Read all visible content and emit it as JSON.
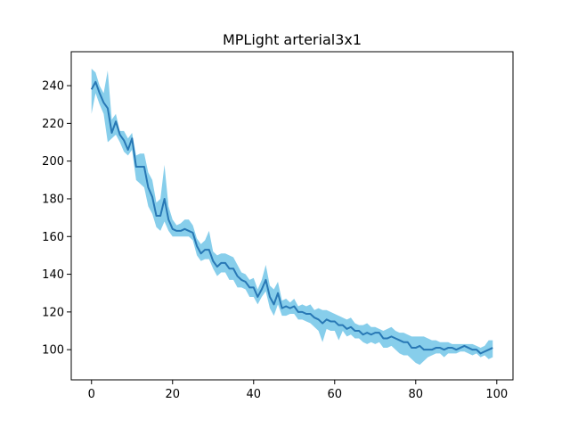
{
  "chart_data": {
    "type": "line",
    "title": "MPLight arterial3x1",
    "xlabel": "",
    "ylabel": "",
    "xlim": [
      -5,
      104
    ],
    "ylim": [
      84,
      258
    ],
    "xticks": [
      0,
      20,
      40,
      60,
      80,
      100
    ],
    "yticks": [
      100,
      120,
      140,
      160,
      180,
      200,
      220,
      240
    ],
    "grid": false,
    "legend": "none",
    "colors": {
      "line": "#2878b5",
      "band": "#87ceeb"
    },
    "series": [
      {
        "x": [
          0,
          1,
          2,
          3,
          4,
          5,
          6,
          7,
          8,
          9,
          10,
          11,
          12,
          13,
          14,
          15,
          16,
          17,
          18,
          19,
          20,
          21,
          22,
          23,
          24,
          25,
          26,
          27,
          28,
          29,
          30,
          31,
          32,
          33,
          34,
          35,
          36,
          37,
          38,
          39,
          40,
          41,
          42,
          43,
          44,
          45,
          46,
          47,
          48,
          49,
          50,
          51,
          52,
          53,
          54,
          55,
          56,
          57,
          58,
          59,
          60,
          61,
          62,
          63,
          64,
          65,
          66,
          67,
          68,
          69,
          70,
          71,
          72,
          73,
          74,
          75,
          76,
          77,
          78,
          79,
          80,
          81,
          82,
          83,
          84,
          85,
          86,
          87,
          88,
          89,
          90,
          91,
          92,
          93,
          94,
          95,
          96,
          97,
          98,
          99
        ],
        "values": [
          238,
          242,
          236,
          231,
          228,
          215,
          221,
          214,
          211,
          206,
          212,
          197,
          197,
          197,
          186,
          181,
          171,
          171,
          180,
          169,
          164,
          163,
          163,
          164,
          163,
          162,
          155,
          151,
          153,
          153,
          147,
          144,
          146,
          146,
          143,
          143,
          139,
          137,
          136,
          133,
          133,
          128,
          132,
          137,
          128,
          124,
          130,
          122,
          123,
          122,
          123,
          120,
          120,
          119,
          119,
          117,
          116,
          114,
          116,
          115,
          115,
          113,
          113,
          111,
          112,
          110,
          110,
          108,
          109,
          108,
          109,
          109,
          106,
          106,
          107,
          106,
          105,
          104,
          104,
          101,
          101,
          102,
          100,
          100,
          100,
          101,
          101,
          100,
          101,
          101,
          100,
          101,
          102,
          101,
          100,
          100,
          98,
          99,
          100,
          101
        ],
        "lower": [
          225,
          236,
          230,
          225,
          210,
          212,
          214,
          210,
          205,
          203,
          206,
          190,
          188,
          186,
          176,
          172,
          165,
          163,
          168,
          163,
          160,
          160,
          160,
          160,
          160,
          158,
          150,
          147,
          148,
          148,
          143,
          139,
          141,
          141,
          137,
          137,
          133,
          133,
          132,
          128,
          128,
          124,
          128,
          131,
          122,
          118,
          124,
          118,
          118,
          119,
          119,
          116,
          116,
          115,
          114,
          112,
          110,
          104,
          111,
          110,
          110,
          105,
          110,
          107,
          108,
          106,
          106,
          104,
          103,
          104,
          103,
          104,
          101,
          101,
          102,
          100,
          98,
          97,
          97,
          95,
          93,
          92,
          94,
          96,
          97,
          98,
          98,
          96,
          98,
          98,
          98,
          99,
          99,
          98,
          97,
          98,
          96,
          97,
          95,
          96
        ],
        "upper": [
          249,
          247,
          240,
          236,
          248,
          222,
          225,
          216,
          216,
          212,
          215,
          203,
          204,
          204,
          194,
          190,
          178,
          180,
          198,
          176,
          169,
          166,
          167,
          169,
          169,
          166,
          159,
          156,
          158,
          163,
          152,
          150,
          151,
          151,
          150,
          149,
          145,
          141,
          140,
          137,
          138,
          132,
          137,
          145,
          134,
          132,
          136,
          126,
          127,
          125,
          127,
          123,
          124,
          123,
          124,
          121,
          122,
          121,
          121,
          120,
          119,
          118,
          117,
          116,
          117,
          114,
          113,
          113,
          114,
          112,
          112,
          111,
          110,
          111,
          112,
          110,
          109,
          109,
          108,
          107,
          107,
          107,
          107,
          106,
          105,
          105,
          104,
          104,
          104,
          103,
          103,
          103,
          103,
          103,
          103,
          102,
          101,
          102,
          105,
          105
        ]
      }
    ]
  }
}
